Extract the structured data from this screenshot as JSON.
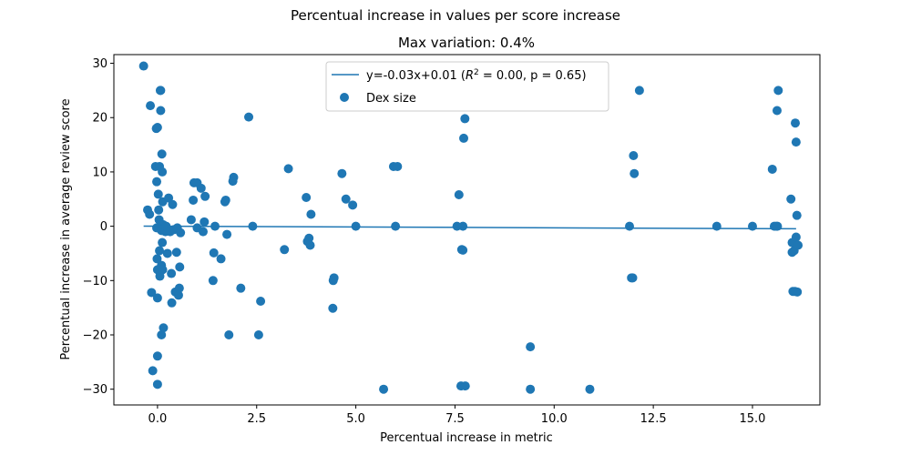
{
  "chart_data": {
    "type": "scatter",
    "suptitle": "Percentual increase in values per score increase",
    "title": "Max variation: 0.4%",
    "xlabel": "Percentual increase in metric",
    "ylabel": "Percentual increase in average review score",
    "xlim": [
      -1.1,
      16.7
    ],
    "ylim": [
      -32.9,
      31.6
    ],
    "xticks": [
      0.0,
      2.5,
      5.0,
      7.5,
      10.0,
      12.5,
      15.0
    ],
    "xtick_labels": [
      "0.0",
      "2.5",
      "5.0",
      "7.5",
      "10.0",
      "12.5",
      "15.0"
    ],
    "yticks": [
      -30,
      -20,
      -10,
      0,
      10,
      20,
      30
    ],
    "ytick_labels": [
      "−30",
      "−20",
      "−10",
      "0",
      "10",
      "20",
      "30"
    ],
    "grid": false,
    "legend_position": "top-center",
    "color": "#1f77b4",
    "series": [
      {
        "name": "y=-0.03x+0.01 ($R^2$ = 0.00, p = 0.65)",
        "legend_parts": [
          "y=-0.03x+0.01 (",
          "R",
          "2",
          " = 0.00, p = 0.65)"
        ],
        "type": "line",
        "points": [
          [
            -0.35,
            0.02
          ],
          [
            16.1,
            -0.47
          ]
        ]
      },
      {
        "name": "Dex size",
        "type": "scatter",
        "points": [
          [
            -0.35,
            29.5
          ],
          [
            -0.25,
            3.0
          ],
          [
            -0.2,
            2.2
          ],
          [
            -0.18,
            22.2
          ],
          [
            -0.15,
            -12.2
          ],
          [
            -0.12,
            -26.6
          ],
          [
            -0.05,
            11.0
          ],
          [
            -0.03,
            18.0
          ],
          [
            -0.02,
            8.2
          ],
          [
            -0.02,
            -0.3
          ],
          [
            -0.01,
            -6.0
          ],
          [
            0.0,
            -8.0
          ],
          [
            0.0,
            -13.2
          ],
          [
            0.0,
            -23.9
          ],
          [
            0.0,
            -29.1
          ],
          [
            0.0,
            18.2
          ],
          [
            0.02,
            5.9
          ],
          [
            0.03,
            3.0
          ],
          [
            0.04,
            1.2
          ],
          [
            0.05,
            -4.5
          ],
          [
            0.05,
            11.0
          ],
          [
            0.06,
            -9.2
          ],
          [
            0.07,
            25.0
          ],
          [
            0.08,
            25.0
          ],
          [
            0.08,
            21.3
          ],
          [
            0.1,
            -7.2
          ],
          [
            0.1,
            -0.8
          ],
          [
            0.1,
            -20.0
          ],
          [
            0.11,
            13.3
          ],
          [
            0.12,
            10.0
          ],
          [
            0.12,
            -3.0
          ],
          [
            0.13,
            4.5
          ],
          [
            0.13,
            -8.0
          ],
          [
            0.14,
            0.3
          ],
          [
            0.15,
            -18.7
          ],
          [
            0.16,
            -0.5
          ],
          [
            0.18,
            -0.2
          ],
          [
            0.2,
            -1.0
          ],
          [
            0.22,
            0.0
          ],
          [
            0.25,
            -5.0
          ],
          [
            0.28,
            5.2
          ],
          [
            0.32,
            -1.0
          ],
          [
            0.35,
            -8.7
          ],
          [
            0.36,
            -14.1
          ],
          [
            0.38,
            4.0
          ],
          [
            0.42,
            -0.6
          ],
          [
            0.45,
            -12.1
          ],
          [
            0.48,
            -4.8
          ],
          [
            0.5,
            -0.3
          ],
          [
            0.53,
            -12.7
          ],
          [
            0.55,
            -11.4
          ],
          [
            0.56,
            -7.5
          ],
          [
            0.58,
            -1.2
          ],
          [
            0.85,
            1.2
          ],
          [
            0.9,
            4.8
          ],
          [
            0.92,
            8.0
          ],
          [
            1.0,
            8.0
          ],
          [
            1.0,
            -0.3
          ],
          [
            1.1,
            7.0
          ],
          [
            1.15,
            -1.0
          ],
          [
            1.18,
            0.8
          ],
          [
            1.2,
            5.5
          ],
          [
            1.4,
            -10.0
          ],
          [
            1.42,
            -4.9
          ],
          [
            1.45,
            0.0
          ],
          [
            1.6,
            -6.0
          ],
          [
            1.7,
            4.5
          ],
          [
            1.72,
            4.8
          ],
          [
            1.75,
            -1.5
          ],
          [
            1.8,
            -20.0
          ],
          [
            1.9,
            8.3
          ],
          [
            1.92,
            9.0
          ],
          [
            2.1,
            -11.4
          ],
          [
            2.3,
            20.1
          ],
          [
            2.4,
            0.0
          ],
          [
            2.55,
            -20.0
          ],
          [
            2.6,
            -13.8
          ],
          [
            3.2,
            -4.3
          ],
          [
            3.3,
            10.6
          ],
          [
            3.75,
            5.3
          ],
          [
            3.78,
            -2.8
          ],
          [
            3.82,
            -2.2
          ],
          [
            3.85,
            -3.5
          ],
          [
            3.87,
            2.2
          ],
          [
            4.42,
            -15.1
          ],
          [
            4.43,
            -10.0
          ],
          [
            4.45,
            -9.5
          ],
          [
            4.65,
            9.7
          ],
          [
            4.75,
            5.0
          ],
          [
            4.92,
            3.9
          ],
          [
            5.0,
            0.0
          ],
          [
            5.7,
            -30.0
          ],
          [
            5.95,
            11.0
          ],
          [
            6.05,
            11.0
          ],
          [
            6.0,
            0.0
          ],
          [
            7.55,
            0.0
          ],
          [
            7.6,
            5.8
          ],
          [
            7.65,
            -29.4
          ],
          [
            7.67,
            -4.3
          ],
          [
            7.7,
            0.0
          ],
          [
            7.72,
            16.2
          ],
          [
            7.75,
            19.8
          ],
          [
            7.7,
            -4.4
          ],
          [
            7.76,
            -29.4
          ],
          [
            9.4,
            -22.2
          ],
          [
            9.4,
            -30.0
          ],
          [
            10.9,
            -30.0
          ],
          [
            11.9,
            0.0
          ],
          [
            11.95,
            -9.5
          ],
          [
            11.98,
            -9.5
          ],
          [
            12.0,
            13.0
          ],
          [
            12.02,
            9.7
          ],
          [
            12.15,
            25.0
          ],
          [
            14.1,
            0.0
          ],
          [
            15.0,
            0.0
          ],
          [
            15.5,
            10.5
          ],
          [
            15.55,
            0.0
          ],
          [
            15.6,
            0.0
          ],
          [
            15.62,
            21.3
          ],
          [
            15.65,
            25.0
          ],
          [
            15.63,
            0.0
          ],
          [
            15.97,
            5.0
          ],
          [
            16.0,
            -3.0
          ],
          [
            16.0,
            -4.8
          ],
          [
            16.02,
            -12.0
          ],
          [
            16.05,
            -4.5
          ],
          [
            16.07,
            -12.0
          ],
          [
            16.08,
            19.0
          ],
          [
            16.1,
            -2.0
          ],
          [
            16.1,
            15.5
          ],
          [
            16.12,
            2.0
          ],
          [
            16.13,
            -12.1
          ],
          [
            16.15,
            -3.5
          ]
        ]
      }
    ]
  }
}
